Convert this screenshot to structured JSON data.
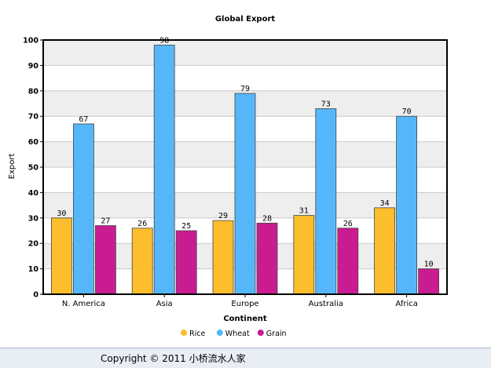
{
  "chart_data": {
    "type": "bar",
    "title": "Global Export",
    "xlabel": "Continent",
    "ylabel": "Export",
    "categories": [
      "N. America",
      "Asia",
      "Europe",
      "Australia",
      "Africa"
    ],
    "series": [
      {
        "name": "Rice",
        "color": "#fcbe2c",
        "values": [
          30,
          26,
          29,
          31,
          34
        ]
      },
      {
        "name": "Wheat",
        "color": "#55b7fa",
        "values": [
          67,
          98,
          79,
          73,
          70
        ]
      },
      {
        "name": "Grain",
        "color": "#c91c91",
        "values": [
          27,
          25,
          28,
          26,
          10
        ]
      }
    ],
    "ylim": [
      0,
      100
    ],
    "yticks": [
      0,
      10,
      20,
      30,
      40,
      50,
      60,
      70,
      80,
      90,
      100
    ],
    "grid": true,
    "banded_background": true,
    "legend_position": "bottom"
  },
  "footer": {
    "copyright": "Copyright © 2011 小桥流水人家"
  }
}
